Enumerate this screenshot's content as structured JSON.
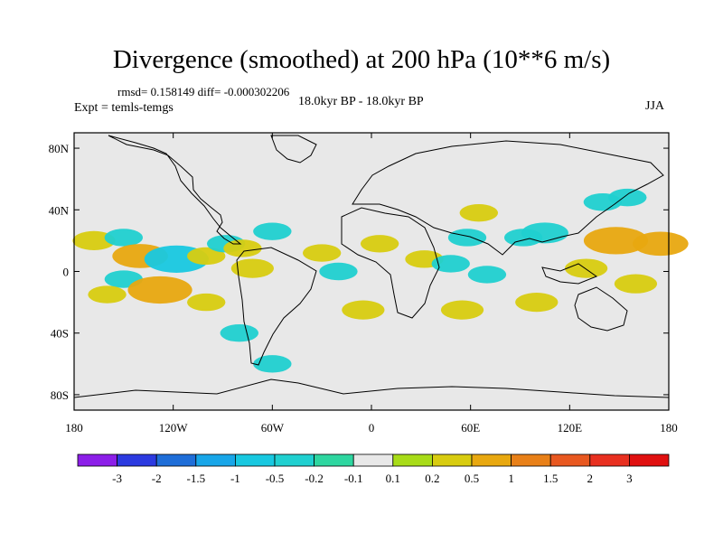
{
  "chart_data": {
    "type": "heatmap",
    "title": "Divergence (smoothed) at 200 hPa (10**6 m/s)",
    "stats_text": "rmsd= 0.158149 diff= -0.000302206",
    "experiment_text": "Expt = temls-temgs",
    "period_text": "18.0kyr BP - 18.0kyr BP",
    "season_text": "JJA",
    "xlim": [
      -180,
      180
    ],
    "ylim": [
      -90,
      90
    ],
    "x_ticks": [
      {
        "value": -180,
        "label": "180"
      },
      {
        "value": -120,
        "label": "120W"
      },
      {
        "value": -60,
        "label": "60W"
      },
      {
        "value": 0,
        "label": "0"
      },
      {
        "value": 60,
        "label": "60E"
      },
      {
        "value": 120,
        "label": "120E"
      },
      {
        "value": 180,
        "label": "180"
      }
    ],
    "y_ticks": [
      {
        "value": 80,
        "label": "80N"
      },
      {
        "value": 40,
        "label": "40N"
      },
      {
        "value": 0,
        "label": "0"
      },
      {
        "value": -40,
        "label": "40S"
      },
      {
        "value": -80,
        "label": "80S"
      }
    ],
    "colorbar": {
      "labels": [
        "-3",
        "-2",
        "-1.5",
        "-1",
        "-0.5",
        "-0.2",
        "-0.1",
        "0.1",
        "0.2",
        "0.5",
        "1",
        "1.5",
        "2",
        "3"
      ],
      "colors": [
        "#8c1fe8",
        "#2c3ae0",
        "#1f6ed8",
        "#18a6e8",
        "#18c8e0",
        "#20d0d0",
        "#2ed6a0",
        "#e8e8e8",
        "#a8dc18",
        "#d8cc10",
        "#e8a810",
        "#e88018",
        "#e85820",
        "#e83020",
        "#e01010"
      ]
    },
    "anomalies": [
      {
        "lon": -168,
        "lat": 20,
        "value": 0.4
      },
      {
        "lon": -150,
        "lat": 22,
        "value": -0.3
      },
      {
        "lon": -140,
        "lat": 10,
        "value": 0.7
      },
      {
        "lon": -118,
        "lat": 8,
        "value": -0.9
      },
      {
        "lon": -100,
        "lat": 10,
        "value": 0.3
      },
      {
        "lon": -150,
        "lat": -5,
        "value": -0.3
      },
      {
        "lon": -128,
        "lat": -12,
        "value": 0.9
      },
      {
        "lon": -160,
        "lat": -15,
        "value": 0.3
      },
      {
        "lon": -100,
        "lat": -20,
        "value": 0.3
      },
      {
        "lon": -88,
        "lat": 18,
        "value": -0.3
      },
      {
        "lon": -72,
        "lat": 2,
        "value": 0.4
      },
      {
        "lon": -78,
        "lat": 15,
        "value": 0.3
      },
      {
        "lon": -60,
        "lat": 26,
        "value": -0.3
      },
      {
        "lon": -30,
        "lat": 12,
        "value": 0.3
      },
      {
        "lon": -20,
        "lat": 0,
        "value": -0.3
      },
      {
        "lon": 5,
        "lat": 18,
        "value": 0.3
      },
      {
        "lon": 32,
        "lat": 8,
        "value": 0.3
      },
      {
        "lon": 48,
        "lat": 5,
        "value": -0.3
      },
      {
        "lon": 70,
        "lat": -2,
        "value": -0.3
      },
      {
        "lon": 58,
        "lat": 22,
        "value": -0.3
      },
      {
        "lon": 92,
        "lat": 22,
        "value": -0.3
      },
      {
        "lon": 105,
        "lat": 25,
        "value": -0.5
      },
      {
        "lon": 148,
        "lat": 20,
        "value": 0.9
      },
      {
        "lon": 175,
        "lat": 18,
        "value": 0.7
      },
      {
        "lon": 130,
        "lat": 2,
        "value": 0.4
      },
      {
        "lon": 100,
        "lat": -20,
        "value": 0.4
      },
      {
        "lon": 160,
        "lat": -8,
        "value": 0.4
      },
      {
        "lon": 55,
        "lat": -25,
        "value": 0.4
      },
      {
        "lon": -5,
        "lat": -25,
        "value": 0.4
      },
      {
        "lon": -80,
        "lat": -40,
        "value": -0.3
      },
      {
        "lon": -60,
        "lat": -60,
        "value": -0.3
      },
      {
        "lon": 140,
        "lat": 45,
        "value": -0.3
      },
      {
        "lon": 155,
        "lat": 48,
        "value": -0.3
      },
      {
        "lon": 65,
        "lat": 38,
        "value": 0.3
      }
    ]
  }
}
